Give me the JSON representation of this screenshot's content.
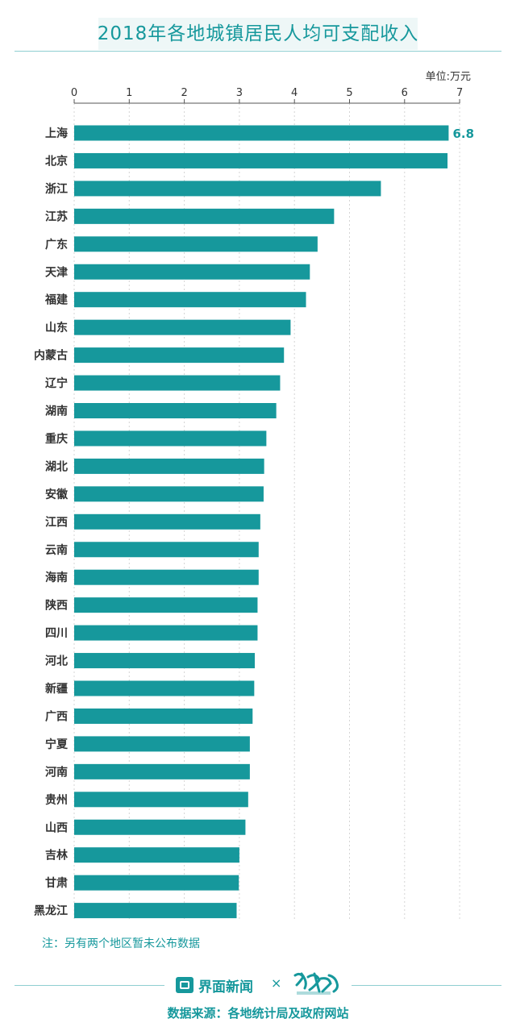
{
  "header": {
    "title": "2018年各地城镇居民人均可支配收入",
    "unit": "单位:万元"
  },
  "chart_data": {
    "type": "bar",
    "orientation": "horizontal",
    "title": "2018年各地城镇居民人均可支配收入",
    "unit": "单位:万元",
    "xlim": [
      0,
      7
    ],
    "x_ticks": [
      0,
      1,
      2,
      3,
      4,
      5,
      6,
      7
    ],
    "grid": true,
    "bar_color": "#16989c",
    "categories": [
      "上海",
      "北京",
      "浙江",
      "江苏",
      "广东",
      "天津",
      "福建",
      "山东",
      "内蒙古",
      "辽宁",
      "湖南",
      "重庆",
      "湖北",
      "安徽",
      "江西",
      "云南",
      "海南",
      "陕西",
      "四川",
      "河北",
      "新疆",
      "广西",
      "宁夏",
      "河南",
      "贵州",
      "山西",
      "吉林",
      "甘肃",
      "黑龙江"
    ],
    "values": [
      6.8,
      6.78,
      5.57,
      4.72,
      4.42,
      4.28,
      4.21,
      3.93,
      3.81,
      3.74,
      3.67,
      3.49,
      3.45,
      3.44,
      3.38,
      3.35,
      3.35,
      3.33,
      3.33,
      3.28,
      3.27,
      3.24,
      3.19,
      3.19,
      3.16,
      3.11,
      3.0,
      2.99,
      2.95
    ],
    "data_labels": [
      {
        "index": 0,
        "text": "6.8"
      }
    ]
  },
  "footer": {
    "note": "注：另有两个地区暂未公布数据",
    "brand": "界面新闻",
    "times": "×",
    "source": "数据来源：各地统计局及政府网站"
  }
}
